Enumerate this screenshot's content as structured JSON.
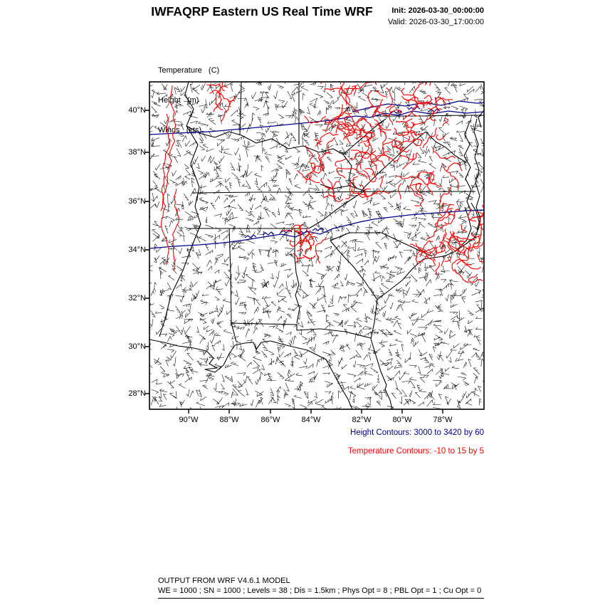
{
  "header": {
    "title": "IWFAQRP Eastern US Real Time WRF",
    "init_label": "Init: 2026-03-30_00:00:00",
    "valid_label": "Valid: 2026-03-30_17:00:00"
  },
  "legend": {
    "line1": "Temperature   (C)",
    "line2": "Height   (m)",
    "line3": "Winds   (kts)"
  },
  "map": {
    "lat_ticks": [
      "40°N",
      "38°N",
      "36°N",
      "34°N",
      "32°N",
      "30°N",
      "28°N"
    ],
    "lon_ticks": [
      "90°W",
      "88°W",
      "86°W",
      "84°W",
      "82°W",
      "80°W",
      "78°W"
    ]
  },
  "captions": {
    "height_contours": "Height Contours: 3000 to 3420 by 60",
    "temperature_contours": "Temperature Contours: -10 to 15 by 5"
  },
  "footer": {
    "line1": "OUTPUT FROM WRF V4.6.1 MODEL",
    "line2": "WE = 1000 ; SN = 1000 ; Levels = 38 ; Dis = 1.5km ; Phys Opt = 8 ; PBL Opt = 1 ; Cu Opt = 0"
  },
  "chart_data": {
    "type": "map",
    "title": "IWFAQRP Eastern US Real Time WRF",
    "model": "WRF V4.6.1",
    "init_time": "2026-03-30_00:00:00",
    "valid_time": "2026-03-30_17:00:00",
    "fields": [
      "Temperature (C)",
      "Height (m)",
      "Winds (kts)"
    ],
    "height_contours": {
      "min": 3000,
      "max": 3420,
      "interval": 60
    },
    "temperature_contours": {
      "min": -10,
      "max": 15,
      "interval": 5
    },
    "lat_ticks_deg": [
      40,
      38,
      36,
      34,
      32,
      30,
      28
    ],
    "lon_ticks_deg_w": [
      90,
      88,
      86,
      84,
      82,
      80,
      78
    ],
    "region": "Eastern US",
    "grid": {
      "WE": 1000,
      "SN": 1000,
      "Levels": 38,
      "Dis_km": 1.5,
      "PhysOpt": 8,
      "PBLOpt": 1,
      "CuOpt": 0
    },
    "colors": {
      "height": "#00008B",
      "temperature": "#FF0000",
      "winds": "#000000",
      "boundaries": "#000000",
      "frame": "#000000"
    }
  }
}
